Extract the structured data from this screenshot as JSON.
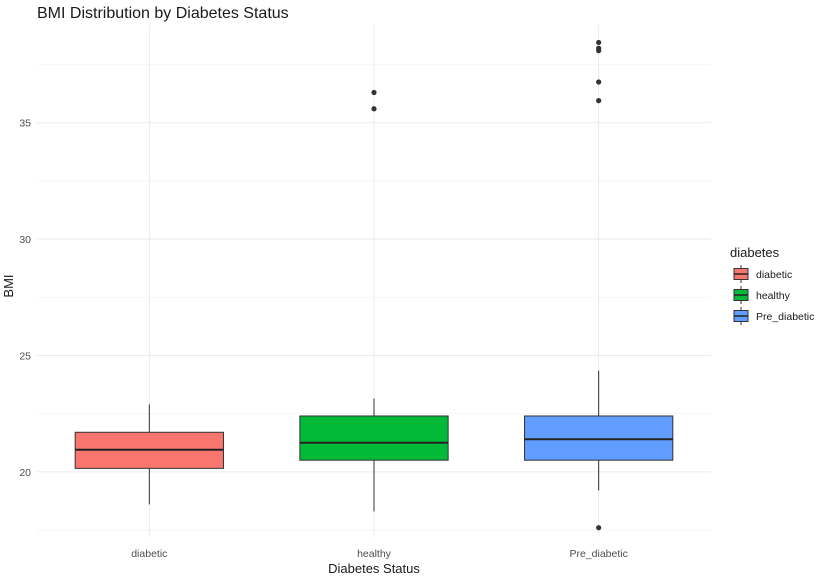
{
  "chart_data": {
    "type": "boxplot",
    "title": "BMI Distribution by Diabetes Status",
    "xlabel": "Diabetes Status",
    "ylabel": "BMI",
    "ylim": [
      17.2,
      39.2
    ],
    "yticks": [
      20,
      25,
      30,
      35
    ],
    "categories": [
      "diabetic",
      "healthy",
      "Pre_diabetic"
    ],
    "legend": {
      "title": "diabetes",
      "position": "right",
      "entries": [
        "diabetic",
        "healthy",
        "Pre_diabetic"
      ]
    },
    "grid": true,
    "series": [
      {
        "category": "diabetic",
        "color": "#F8766D",
        "min": 18.6,
        "q1": 20.15,
        "median": 20.95,
        "q3": 21.7,
        "max": 22.9,
        "outliers": []
      },
      {
        "category": "healthy",
        "color": "#00BA38",
        "min": 18.3,
        "q1": 20.5,
        "median": 21.25,
        "q3": 22.4,
        "max": 23.15,
        "outliers": [
          36.3,
          35.6
        ]
      },
      {
        "category": "Pre_diabetic",
        "color": "#619CFF",
        "min": 19.2,
        "q1": 20.5,
        "median": 21.4,
        "q3": 22.4,
        "max": 24.35,
        "outliers": [
          38.45,
          38.2,
          38.1,
          36.75,
          35.95,
          17.6
        ]
      }
    ]
  }
}
